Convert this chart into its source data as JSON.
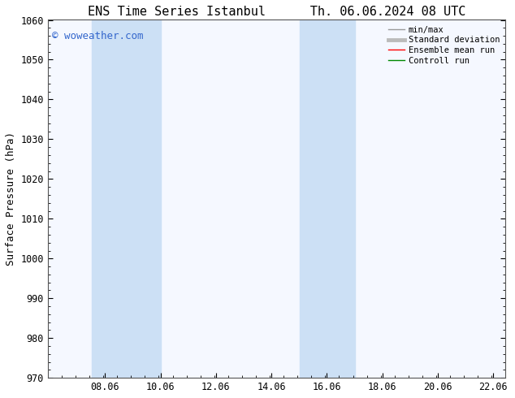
{
  "title_left": "ENS Time Series Istanbul",
  "title_right": "Th. 06.06.2024 08 UTC",
  "ylabel": "Surface Pressure (hPa)",
  "ylim": [
    970,
    1060
  ],
  "yticks": [
    970,
    980,
    990,
    1000,
    1010,
    1020,
    1030,
    1040,
    1050,
    1060
  ],
  "xlim": [
    6.0,
    22.5
  ],
  "xticks": [
    8.06,
    10.06,
    12.06,
    14.06,
    16.06,
    18.06,
    20.06,
    22.06
  ],
  "xtick_labels": [
    "08.06",
    "10.06",
    "12.06",
    "14.06",
    "16.06",
    "18.06",
    "20.06",
    "22.06"
  ],
  "bg_color": "#ffffff",
  "plot_bg_color": "#f5f8ff",
  "watermark_text": "© woweather.com",
  "watermark_color": "#3366cc",
  "shaded_bands": [
    {
      "x_start": 7.58,
      "x_end": 8.5,
      "color": "#cce0f5"
    },
    {
      "x_start": 8.5,
      "x_end": 10.08,
      "color": "#cce0f5"
    },
    {
      "x_start": 15.08,
      "x_end": 15.75,
      "color": "#cce0f5"
    },
    {
      "x_start": 15.75,
      "x_end": 17.08,
      "color": "#cce0f5"
    }
  ],
  "legend_entries": [
    {
      "label": "min/max",
      "color": "#999999",
      "lw": 1.0,
      "style": "-"
    },
    {
      "label": "Standard deviation",
      "color": "#bbbbbb",
      "lw": 3.5,
      "style": "-"
    },
    {
      "label": "Ensemble mean run",
      "color": "#ff0000",
      "lw": 1.0,
      "style": "-"
    },
    {
      "label": "Controll run",
      "color": "#008800",
      "lw": 1.0,
      "style": "-"
    }
  ],
  "tick_direction": "in",
  "title_fontsize": 11,
  "axis_label_fontsize": 9,
  "tick_fontsize": 8.5,
  "watermark_fontsize": 9
}
